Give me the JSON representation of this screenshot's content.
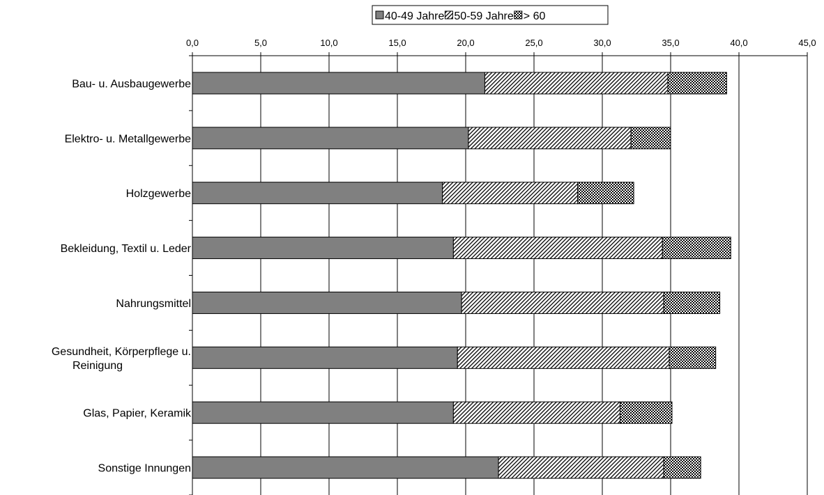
{
  "chart_data": {
    "type": "bar",
    "orientation": "horizontal",
    "stacked": true,
    "categories": [
      "Bau- u. Ausbaugewerbe",
      "Elektro- u. Metallgewerbe",
      "Holzgewerbe",
      "Bekleidung, Textil u. Leder",
      "Nahrungsmittel",
      "Gesundheit, Körperpflege u.\nReinigung",
      "Glas, Papier, Keramik",
      "Sonstige Innungen"
    ],
    "series": [
      {
        "name": "40-49 Jahre",
        "pattern": "solid",
        "values": [
          21.4,
          20.2,
          18.3,
          19.1,
          19.7,
          19.4,
          19.1,
          22.4
        ]
      },
      {
        "name": "50-59 Jahre",
        "pattern": "diagonal",
        "values": [
          13.4,
          11.9,
          9.9,
          15.3,
          14.8,
          15.5,
          12.2,
          12.1
        ]
      },
      {
        "name": "> 60",
        "pattern": "checker",
        "values": [
          4.3,
          2.9,
          4.1,
          5.0,
          4.1,
          3.4,
          3.8,
          2.7
        ]
      }
    ],
    "xlim": [
      0,
      45
    ],
    "xticks": [
      "0,0",
      "5,0",
      "10,0",
      "15,0",
      "20,0",
      "25,0",
      "30,0",
      "35,0",
      "40,0",
      "45,0"
    ],
    "xaxis_position": "top",
    "grid": true,
    "legend_position": "top",
    "title": "",
    "xlabel": "",
    "ylabel": ""
  },
  "colors": {
    "solid": "#808080",
    "line": "#000000",
    "background": "#ffffff"
  }
}
